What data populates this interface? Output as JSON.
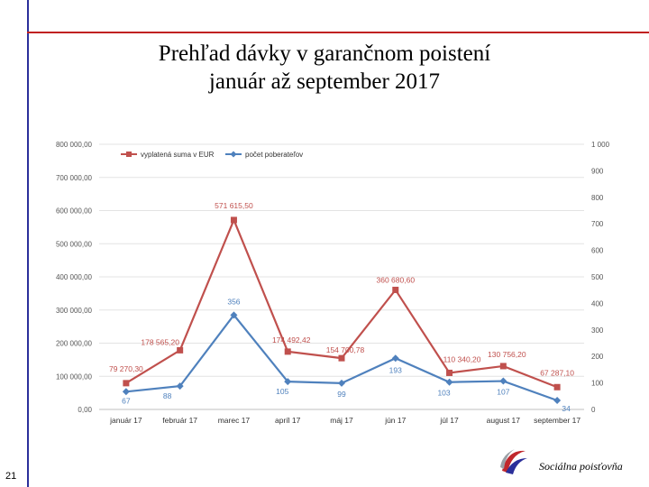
{
  "slide": {
    "title_line1": "Prehľad dávky v garančnom poistení",
    "title_line2": "január až september 2017",
    "page_number": "21",
    "brand": "Sociálna poisťovňa"
  },
  "colors": {
    "series_amount": "#c0504d",
    "series_count": "#4f81bd",
    "frame_left": "#2b2f9a",
    "frame_top": "#c02020"
  },
  "icons": {
    "logo": "sp-logo-icon"
  },
  "chart_data": {
    "type": "line",
    "categories": [
      "január 17",
      "február 17",
      "marec 17",
      "apríl 17",
      "máj 17",
      "jún 17",
      "júl 17",
      "august 17",
      "september 17"
    ],
    "series": [
      {
        "name": "vyplatená suma v EUR",
        "axis": "left",
        "values": [
          79270.3,
          178565.2,
          571615.5,
          174492.42,
          154700.78,
          360680.6,
          110340.2,
          130756.2,
          67287.1
        ],
        "labels": [
          "79 270,30",
          "178 565,20",
          "571 615,50",
          "174 492,42",
          "154 700,78",
          "360 680,60",
          "110 340,20",
          "130 756,20",
          "67 287,10"
        ]
      },
      {
        "name": "počet poberateľov",
        "axis": "right",
        "values": [
          67,
          88,
          356,
          105,
          99,
          193,
          103,
          107,
          34
        ],
        "labels": [
          "67",
          "88",
          "356",
          "105",
          "99",
          "193",
          "103",
          "107",
          "34"
        ]
      }
    ],
    "y_left": {
      "min": 0,
      "max": 800000,
      "ticks": [
        "0,00",
        "100 000,00",
        "200 000,00",
        "300 000,00",
        "400 000,00",
        "500 000,00",
        "600 000,00",
        "700 000,00",
        "800 000,00"
      ]
    },
    "y_right": {
      "min": 0,
      "max": 1000,
      "ticks": [
        "0",
        "100",
        "200",
        "300",
        "400",
        "500",
        "600",
        "700",
        "800",
        "900",
        "1 000"
      ]
    },
    "grid": true,
    "legend": "top-left"
  }
}
